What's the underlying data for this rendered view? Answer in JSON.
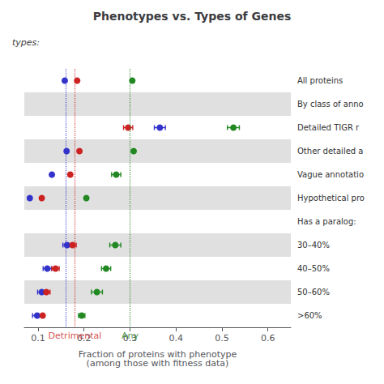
{
  "chart_data": {
    "type": "scatter",
    "title": "Phenotypes vs. Types of Genes",
    "subtitle": "types:",
    "xlabel": "Fraction of proteins with phenotype\n(among those with fitness data)",
    "categories": [
      "All proteins",
      "By class of anno",
      "Detailed TIGR r",
      "Other detailed a",
      "Vague annotatio",
      "Hypothetical pro",
      "Has a paralog:",
      "30–40%",
      "40–50%",
      "50–60%",
      ">60%"
    ],
    "xlim": [
      0.07,
      0.65
    ],
    "xticks": [
      0.1,
      0.2,
      0.3,
      0.4,
      0.5,
      0.6
    ],
    "grid": false,
    "marker": "circle",
    "shaded_rows": [
      1,
      3,
      5,
      7,
      9
    ],
    "shaded_color": "#e0e0e0",
    "reference_lines": [
      {
        "x": 0.158,
        "color": "#3333cc"
      },
      {
        "x": 0.185,
        "color": "#cc2222",
        "label": "Detrimental"
      },
      {
        "x": 0.305,
        "color": "#228822",
        "label": "Any"
      }
    ],
    "series": [
      {
        "color": "#3333cc",
        "values": [
          0.158,
          null,
          0.365,
          0.162,
          0.13,
          0.082,
          null,
          0.163,
          0.12,
          0.108,
          0.098
        ],
        "xerr": [
          0.0,
          null,
          0.012,
          0.0,
          0.0,
          0.0,
          null,
          0.009,
          0.009,
          0.009,
          0.01
        ]
      },
      {
        "color": "#cc2222",
        "values": [
          0.185,
          null,
          0.296,
          0.19,
          0.17,
          0.108,
          null,
          0.175,
          0.138,
          0.118,
          0.11
        ],
        "xerr": [
          0.0,
          null,
          0.01,
          0.0,
          0.0,
          0.0,
          null,
          0.008,
          0.008,
          0.008,
          0.0
        ]
      },
      {
        "color": "#228822",
        "values": [
          0.305,
          null,
          0.525,
          0.308,
          0.27,
          0.205,
          null,
          0.268,
          0.248,
          0.228,
          0.195
        ],
        "xerr": [
          0.0,
          null,
          0.013,
          0.0,
          0.01,
          0.0,
          null,
          0.012,
          0.01,
          0.012,
          0.007
        ]
      }
    ]
  }
}
